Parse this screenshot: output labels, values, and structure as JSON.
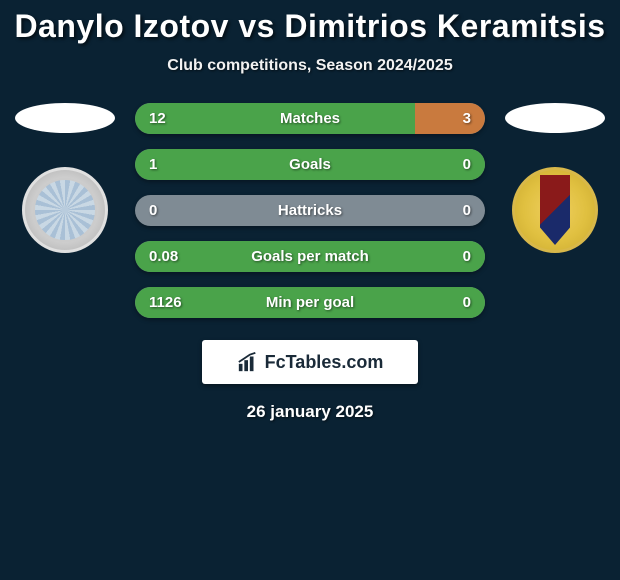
{
  "background_color": "#0a2233",
  "title": {
    "player1": "Danylo Izotov",
    "vs": "vs",
    "player2": "Dimitrios Keramitsis",
    "fontsize": 32,
    "color": "#ffffff"
  },
  "subtitle": {
    "text": "Club competitions, Season 2024/2025",
    "fontsize": 16,
    "color": "#f2f2f2"
  },
  "players": {
    "left": {
      "silhouette_color": "#ffffff",
      "badge_colors": {
        "outer": "#e0e0e0",
        "inner": "#a9c0d6"
      }
    },
    "right": {
      "silhouette_color": "#ffffff",
      "badge_colors": {
        "outer": "#d8b84a",
        "stripe_red": "#8a1a1a",
        "stripe_blue": "#1a2a6a"
      }
    }
  },
  "stats": {
    "bar_bg": "#7f8b94",
    "left_fill_color": "#4aa34a",
    "right_fill_color": "#c97a3e",
    "label_fontsize": 15,
    "rows": [
      {
        "label": "Matches",
        "left": "12",
        "right": "3",
        "left_pct": 80,
        "right_pct": 20
      },
      {
        "label": "Goals",
        "left": "1",
        "right": "0",
        "left_pct": 100,
        "right_pct": 0
      },
      {
        "label": "Hattricks",
        "left": "0",
        "right": "0",
        "left_pct": 0,
        "right_pct": 0
      },
      {
        "label": "Goals per match",
        "left": "0.08",
        "right": "0",
        "left_pct": 100,
        "right_pct": 0
      },
      {
        "label": "Min per goal",
        "left": "1126",
        "right": "0",
        "left_pct": 100,
        "right_pct": 0
      }
    ]
  },
  "brand": {
    "text": "FcTables.com",
    "bg": "#ffffff",
    "text_color": "#1a2a38",
    "fontsize": 18
  },
  "date": {
    "text": "26 january 2025",
    "fontsize": 17,
    "color": "#ffffff"
  }
}
